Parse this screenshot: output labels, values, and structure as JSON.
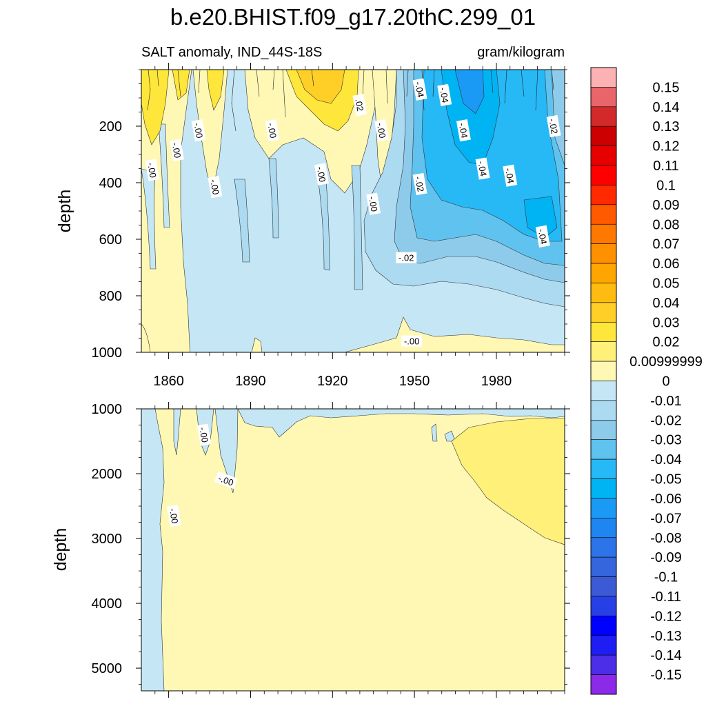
{
  "chart_data": [
    {
      "type": "contour",
      "title": "b.e20.BHIST.f09_g17.20thC.299_01",
      "left_string": "SALT anomaly, IND_44S-18S",
      "right_string": "gram/kilogram",
      "ylabel": "depth",
      "xlim": [
        1850,
        2005
      ],
      "ylim": [
        1000,
        0
      ],
      "xticks": [
        1860,
        1890,
        1920,
        1950,
        1980
      ],
      "yticks": [
        200,
        400,
        600,
        800,
        1000
      ],
      "contour_labels": [
        {
          "text": "-.04",
          "x": 1952,
          "y": 70,
          "rot": 80
        },
        {
          "text": "-.04",
          "x": 1961,
          "y": 90,
          "rot": 80
        },
        {
          "text": ".02",
          "x": 1930,
          "y": 125,
          "rot": 80
        },
        {
          "text": "-.04",
          "x": 1968,
          "y": 215,
          "rot": 80
        },
        {
          "text": "-.02",
          "x": 2001,
          "y": 200,
          "rot": 80
        },
        {
          "text": "-.00",
          "x": 1871,
          "y": 215,
          "rot": 80
        },
        {
          "text": "-.00",
          "x": 1898,
          "y": 215,
          "rot": 80
        },
        {
          "text": "-.00",
          "x": 1938,
          "y": 215,
          "rot": 80
        },
        {
          "text": "-.00",
          "x": 1863,
          "y": 285,
          "rot": 80
        },
        {
          "text": "-.00",
          "x": 1854,
          "y": 355,
          "rot": 80
        },
        {
          "text": "-.04",
          "x": 1975,
          "y": 350,
          "rot": 80
        },
        {
          "text": "-.04",
          "x": 1985,
          "y": 375,
          "rot": 80
        },
        {
          "text": "-.00",
          "x": 1877,
          "y": 415,
          "rot": 80
        },
        {
          "text": "-.00",
          "x": 1916,
          "y": 370,
          "rot": 80
        },
        {
          "text": "-.02",
          "x": 1952,
          "y": 405,
          "rot": 80
        },
        {
          "text": "-.00",
          "x": 1935,
          "y": 475,
          "rot": 80
        },
        {
          "text": "-.04",
          "x": 1997,
          "y": 590,
          "rot": 80
        },
        {
          "text": "-.02",
          "x": 1947,
          "y": 665,
          "rot": 0
        },
        {
          "text": "-.00",
          "x": 1949,
          "y": 960,
          "rot": 0
        }
      ]
    },
    {
      "type": "contour",
      "ylabel": "depth",
      "xlim": [
        1850,
        2005
      ],
      "ylim": [
        5350,
        1000
      ],
      "xticks": [
        1860,
        1890,
        1920,
        1950,
        1980
      ],
      "yticks": [
        1000,
        2000,
        3000,
        4000,
        5000
      ],
      "contour_labels": [
        {
          "text": "-.00",
          "x": 1873,
          "y": 1400,
          "rot": 80
        },
        {
          "text": "-.00",
          "x": 1881,
          "y": 2100,
          "rot": 20
        },
        {
          "text": "-.00",
          "x": 1862,
          "y": 2650,
          "rot": 80
        }
      ]
    }
  ],
  "colorbar": {
    "levels": [
      "0.15",
      "0.14",
      "0.13",
      "0.12",
      "0.11",
      "0.1",
      "0.09",
      "0.08",
      "0.07",
      "0.06",
      "0.05",
      "0.04",
      "0.03",
      "0.02",
      "0.00999999",
      "0",
      "-0.01",
      "-0.02",
      "-0.03",
      "-0.04",
      "-0.05",
      "-0.06",
      "-0.07",
      "-0.08",
      "-0.09",
      "-0.1",
      "-0.11",
      "-0.12",
      "-0.13",
      "-0.14",
      "-0.15"
    ],
    "colors": [
      "#fcb1b3",
      "#e8656a",
      "#d22a2a",
      "#cc0000",
      "#e60000",
      "#ff0000",
      "#ff2a00",
      "#ff5a00",
      "#ff7800",
      "#ff9000",
      "#ffa500",
      "#ffbc10",
      "#ffcf28",
      "#ffe63a",
      "#fff07a",
      "#fff8b4",
      "#c5e6f5",
      "#abdaf1",
      "#8ecbeb",
      "#5fc2ef",
      "#27b8f6",
      "#00b4f4",
      "#1a9af5",
      "#1d86f0",
      "#2c74e8",
      "#3566de",
      "#3c5ad6",
      "#2740e6",
      "#0000ff",
      "#1e1ef4",
      "#4b2ee6",
      "#8b2ae8"
    ]
  }
}
